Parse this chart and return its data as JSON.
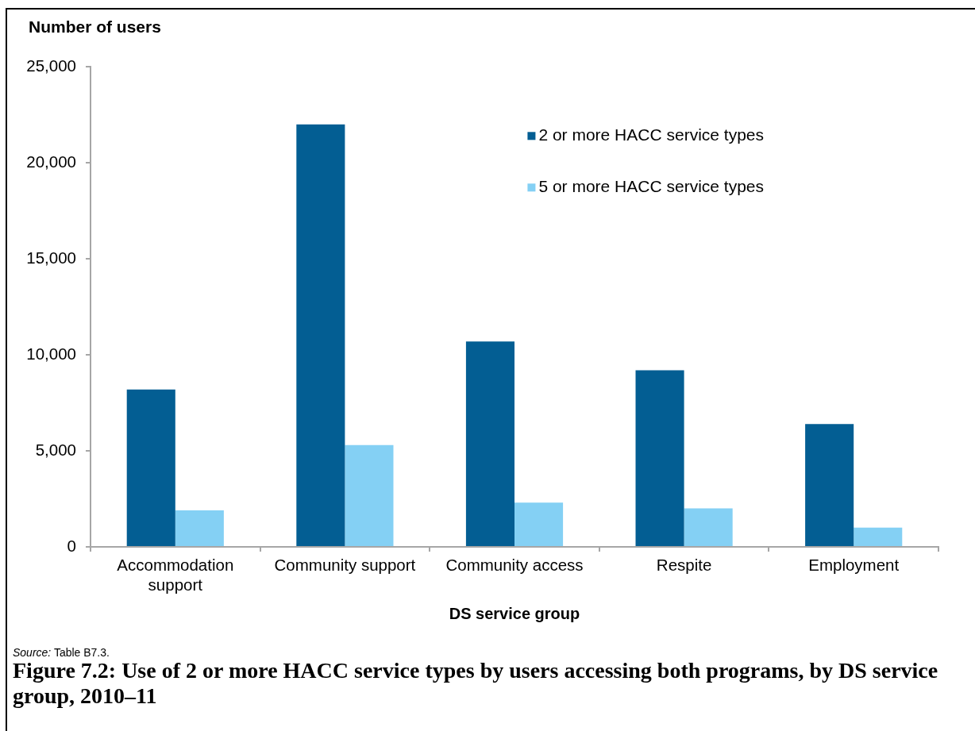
{
  "chart_data": {
    "type": "bar",
    "title": "Figure 7.2: Use of 2 or more HACC service types by users accessing both programs, by DS service group, 2010–11",
    "xlabel": "DS service group",
    "ylabel": "Number of users",
    "annotations": [
      "Source: Table B7.3."
    ],
    "categories": [
      "Accommodation support",
      "Community support",
      "Community access",
      "Respite",
      "Employment"
    ],
    "series": [
      {
        "name": "2 or more HACC service types",
        "color": "#035e93",
        "values": [
          8200,
          22000,
          10700,
          9200,
          6400
        ]
      },
      {
        "name": "5 or more HACC service types",
        "color": "#84d0f4",
        "values": [
          1900,
          5300,
          2300,
          2000,
          1000
        ]
      }
    ],
    "ylim": [
      0,
      25000
    ],
    "yticks": [
      0,
      {
        "value": 5000,
        "label": "5,000"
      },
      {
        "value": 10000,
        "label": "10,000"
      },
      {
        "value": 15000,
        "label": "15,000"
      },
      {
        "value": 20000,
        "label": "20,000"
      },
      {
        "value": 25000,
        "label": "25,000"
      }
    ],
    "grid": false,
    "legend": "top right"
  }
}
